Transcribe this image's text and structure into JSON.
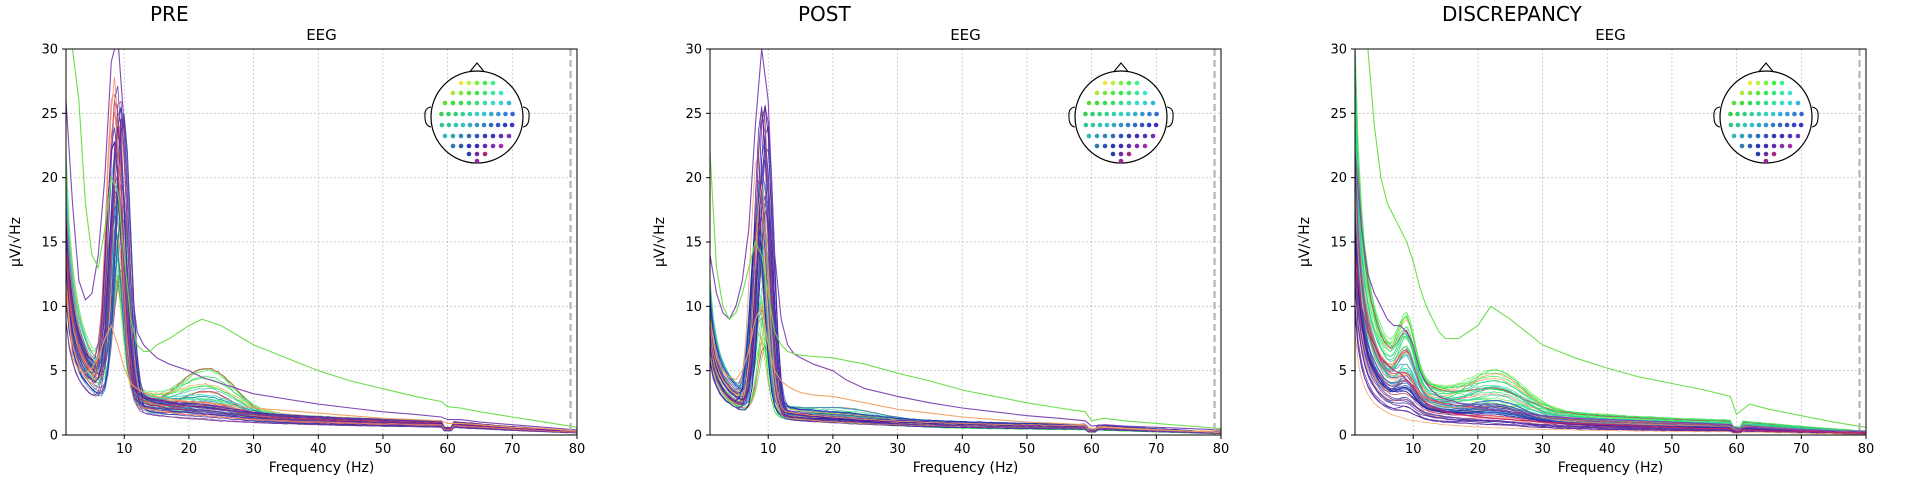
{
  "figure": {
    "panel_titles": [
      "PRE",
      "POST",
      "DISCREPANCY"
    ]
  },
  "chart_data": [
    {
      "type": "line",
      "panel_title": "PRE",
      "title": "EEG",
      "xlabel": "Frequency (Hz)",
      "ylabel": "µV/√Hz",
      "xlim": [
        1,
        80
      ],
      "ylim": [
        0,
        30
      ],
      "xticks": [
        10,
        20,
        30,
        40,
        50,
        60,
        70,
        80
      ],
      "yticks": [
        0,
        5,
        10,
        15,
        20,
        25,
        30
      ],
      "grid": true,
      "legend": "sensor-layout-inset top-right",
      "dashed_vline_x": 79,
      "profile": "pre",
      "series_count": 60,
      "x": [
        1,
        2,
        3,
        4,
        5,
        6,
        7,
        8,
        9,
        10,
        11,
        12,
        13,
        14,
        15,
        17,
        20,
        22,
        25,
        30,
        35,
        40,
        45,
        50,
        55,
        59,
        60,
        62,
        65,
        70,
        75,
        80
      ],
      "representative_series": [
        {
          "group": "posterior-purple",
          "color": "#7b3fb0",
          "values": [
            26,
            18,
            12,
            10.5,
            11,
            14,
            20,
            29,
            31,
            24,
            12,
            8,
            7,
            6.5,
            6,
            5.5,
            5,
            4.5,
            4,
            3.2,
            2.8,
            2.4,
            2.1,
            1.8,
            1.6,
            1.4,
            1.2,
            1.2,
            1.0,
            0.8,
            0.6,
            0.4
          ]
        },
        {
          "group": "frontal-green",
          "color": "#66dd44",
          "values": [
            30,
            30,
            26,
            18,
            14,
            13,
            16,
            20,
            19,
            14,
            9,
            7,
            6.5,
            6.5,
            7,
            7.5,
            8.5,
            9,
            8.5,
            7,
            6,
            5,
            4.2,
            3.6,
            3,
            2.6,
            2.2,
            2.1,
            1.8,
            1.4,
            1.0,
            0.6
          ]
        },
        {
          "group": "temporal-orange",
          "color": "#f0a060",
          "values": [
            12,
            6,
            5,
            4.8,
            5.2,
            6,
            7.5,
            8.5,
            7,
            5.2,
            4,
            3.6,
            3.3,
            3.1,
            3,
            2.8,
            2.6,
            2.5,
            2.4,
            2.1,
            1.9,
            1.7,
            1.5,
            1.3,
            1.2,
            1.1,
            0.9,
            0.9,
            0.8,
            0.6,
            0.5,
            0.3
          ]
        }
      ]
    },
    {
      "type": "line",
      "panel_title": "POST",
      "title": "EEG",
      "xlabel": "Frequency (Hz)",
      "ylabel": "µV/√Hz",
      "xlim": [
        1,
        80
      ],
      "ylim": [
        0,
        30
      ],
      "xticks": [
        10,
        20,
        30,
        40,
        50,
        60,
        70,
        80
      ],
      "yticks": [
        0,
        5,
        10,
        15,
        20,
        25,
        30
      ],
      "grid": true,
      "legend": "sensor-layout-inset top-right",
      "dashed_vline_x": 79,
      "profile": "post",
      "series_count": 60,
      "x": [
        1,
        2,
        3,
        4,
        5,
        6,
        7,
        8,
        9,
        10,
        11,
        12,
        13,
        14,
        15,
        17,
        20,
        22,
        25,
        30,
        35,
        40,
        45,
        50,
        55,
        59,
        60,
        62,
        65,
        70,
        75,
        80
      ],
      "representative_series": [
        {
          "group": "posterior-purple",
          "color": "#7b3fb0",
          "values": [
            14,
            11,
            9.5,
            9,
            10,
            12,
            16,
            24,
            30,
            26,
            14,
            9,
            7,
            6.3,
            6,
            5.5,
            5,
            4.3,
            3.6,
            3,
            2.5,
            2.1,
            1.8,
            1.5,
            1.3,
            1.1,
            0.7,
            0.8,
            0.7,
            0.6,
            0.5,
            0.4
          ]
        },
        {
          "group": "frontal-green",
          "color": "#66dd44",
          "values": [
            22,
            13,
            10,
            9,
            9.5,
            11,
            13,
            15,
            14,
            11,
            8,
            7,
            6.5,
            6.3,
            6.2,
            6.1,
            6,
            5.8,
            5.5,
            4.8,
            4.2,
            3.5,
            3,
            2.5,
            2.1,
            1.8,
            1.1,
            1.3,
            1.1,
            0.9,
            0.7,
            0.5
          ]
        },
        {
          "group": "temporal-orange",
          "color": "#f0a060",
          "values": [
            9,
            6,
            5,
            4.5,
            4.3,
            5,
            6.5,
            9,
            10,
            7,
            5,
            4.2,
            3.8,
            3.5,
            3.3,
            3.1,
            3,
            2.8,
            2.5,
            2,
            1.7,
            1.4,
            1.2,
            1,
            0.9,
            0.8,
            0.5,
            0.6,
            0.5,
            0.4,
            0.3,
            0.3
          ]
        }
      ]
    },
    {
      "type": "line",
      "panel_title": "DISCREPANCY",
      "title": "EEG",
      "xlabel": "Frequency (Hz)",
      "ylabel": "µV/√Hz",
      "xlim": [
        1,
        80
      ],
      "ylim": [
        0,
        30
      ],
      "xticks": [
        10,
        20,
        30,
        40,
        50,
        60,
        70,
        80
      ],
      "yticks": [
        0,
        5,
        10,
        15,
        20,
        25,
        30
      ],
      "grid": true,
      "legend": "sensor-layout-inset top-right",
      "dashed_vline_x": 79,
      "profile": "disc",
      "series_count": 60,
      "x": [
        1,
        2,
        3,
        4,
        5,
        6,
        7,
        8,
        9,
        10,
        11,
        12,
        13,
        14,
        15,
        17,
        20,
        22,
        25,
        30,
        35,
        40,
        45,
        50,
        55,
        59,
        60,
        62,
        65,
        70,
        75,
        80
      ],
      "representative_series": [
        {
          "group": "posterior-purple",
          "color": "#7b3fb0",
          "values": [
            22,
            16,
            12.5,
            11,
            10,
            9,
            8.5,
            8.5,
            8,
            7,
            5,
            4,
            3.4,
            3,
            2.8,
            2.5,
            2.2,
            2,
            1.8,
            1.5,
            1.3,
            1.2,
            1.1,
            1,
            0.9,
            0.8,
            0.5,
            0.6,
            0.5,
            0.4,
            0.3,
            0.3
          ]
        },
        {
          "group": "frontal-green",
          "color": "#66dd44",
          "values": [
            30,
            30,
            30,
            24,
            20,
            18,
            17,
            16,
            15,
            13.5,
            11.5,
            10,
            9,
            8,
            7.5,
            7.5,
            8.5,
            10,
            9,
            7,
            6,
            5.2,
            4.5,
            4,
            3.5,
            3,
            1.6,
            2.4,
            2,
            1.5,
            1,
            0.6
          ]
        },
        {
          "group": "temporal-magenta",
          "color": "#cc2266",
          "values": [
            14,
            10,
            8,
            7,
            6,
            5.5,
            5,
            4.8,
            4.3,
            3.8,
            3,
            2.5,
            2.2,
            2,
            1.8,
            1.6,
            1.4,
            1.3,
            1.2,
            1,
            0.9,
            0.8,
            0.7,
            0.6,
            0.5,
            0.5,
            0.3,
            0.4,
            0.3,
            0.3,
            0.2,
            0.2
          ]
        }
      ]
    }
  ]
}
